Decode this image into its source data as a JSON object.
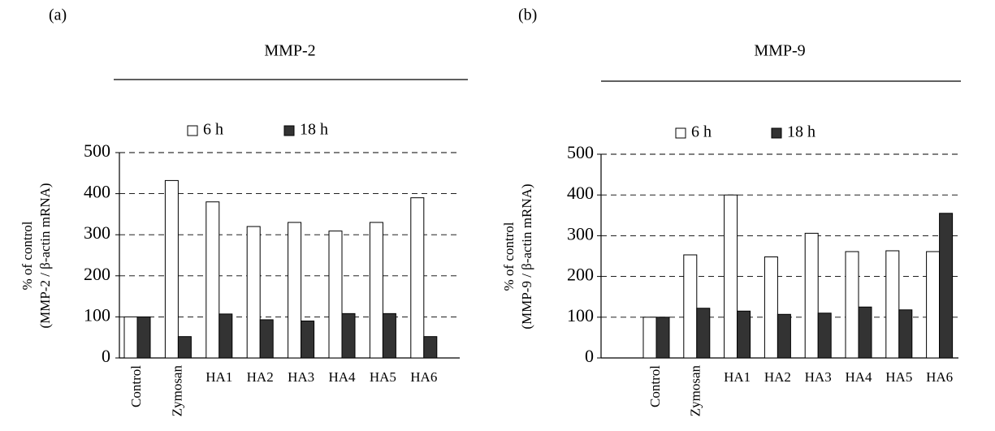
{
  "chart_data": [
    {
      "type": "bar",
      "panel_label": "(a)",
      "title": "MMP-2",
      "ylabel_line1": "% of control",
      "ylabel_line2": "(MMP-2 / β-actin mRNA)",
      "ylim": [
        0,
        500
      ],
      "yticks": [
        0,
        100,
        200,
        300,
        400,
        500
      ],
      "grid": "dashed horizontal",
      "legend_position": "top",
      "categories": [
        "Control",
        "Zymosan",
        "HA1",
        "HA2",
        "HA3",
        "HA4",
        "HA5",
        "HA6"
      ],
      "rotated_categories": [
        "Control",
        "Zymosan"
      ],
      "series": [
        {
          "name": "6 h",
          "color": "#ffffff",
          "values": [
            100,
            432,
            380,
            320,
            330,
            309,
            330,
            390
          ]
        },
        {
          "name": "18 h",
          "color": "#333333",
          "values": [
            100,
            52,
            107,
            93,
            90,
            108,
            108,
            52
          ]
        }
      ]
    },
    {
      "type": "bar",
      "panel_label": "(b)",
      "title": "MMP-9",
      "ylabel_line1": "% of control",
      "ylabel_line2": "(MMP-9 / β-actin mRNA)",
      "ylim": [
        0,
        500
      ],
      "yticks": [
        0,
        100,
        200,
        300,
        400,
        500
      ],
      "grid": "dashed horizontal",
      "legend_position": "top",
      "categories": [
        "Control",
        "Zymosan",
        "HA1",
        "HA2",
        "HA3",
        "HA4",
        "HA5",
        "HA6"
      ],
      "rotated_categories": [
        "Control",
        "Zymosan"
      ],
      "series": [
        {
          "name": "6 h",
          "color": "#ffffff",
          "values": [
            100,
            253,
            400,
            248,
            306,
            261,
            263,
            261
          ]
        },
        {
          "name": "18 h",
          "color": "#333333",
          "values": [
            100,
            122,
            115,
            107,
            110,
            125,
            118,
            355
          ]
        }
      ]
    }
  ]
}
